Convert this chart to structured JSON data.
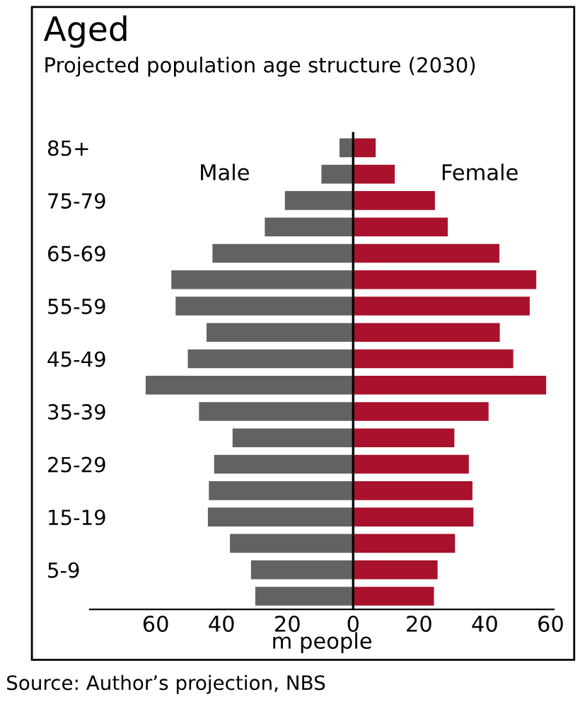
{
  "chart_data": {
    "type": "bar",
    "orientation": "horizontal",
    "stacked": true,
    "title": "Aged",
    "subtitle": "Projected population age structure (2030)",
    "xlabel": "m people",
    "categories": [
      "85+",
      null,
      "75-79",
      null,
      "65-69",
      null,
      "55-59",
      null,
      "45-49",
      null,
      "35-39",
      null,
      "25-29",
      null,
      "15-19",
      null,
      "5-9",
      null
    ],
    "series": [
      {
        "name": "Male",
        "color": "#626262",
        "values": [
          -4.3,
          -9.8,
          -20.9,
          -27,
          -42.9,
          -55.4,
          -54.1,
          -44.7,
          -50.4,
          -63.2,
          -47,
          -36.8,
          -42.4,
          -44,
          -44.3,
          -37.6,
          -31.2,
          -29.9
        ]
      },
      {
        "name": "Female",
        "color": "#a8122c",
        "values": [
          7,
          12.8,
          25,
          28.9,
          44.6,
          55.8,
          53.8,
          44.7,
          48.8,
          58.8,
          41.3,
          30.9,
          35.3,
          36.4,
          36.7,
          31.1,
          25.8,
          24.7
        ]
      }
    ],
    "xlim": [
      -80,
      61
    ],
    "xticks": [
      {
        "value": -60,
        "label": "60"
      },
      {
        "value": -40,
        "label": "40"
      },
      {
        "value": -20,
        "label": "20"
      },
      0,
      20,
      40,
      60
    ],
    "grid": false,
    "ref_lines": [
      {
        "axis": "x",
        "value": 0,
        "color": "#000000"
      }
    ],
    "annotations": [
      "Source: Author’s projection, NBS"
    ]
  }
}
